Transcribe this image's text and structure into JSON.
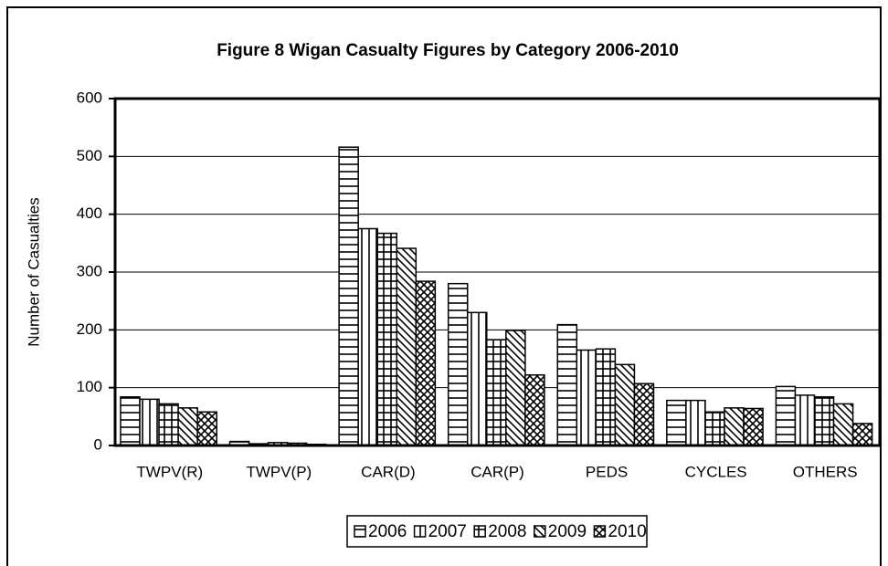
{
  "chart_data": {
    "type": "bar",
    "title": "Figure 8 Wigan Casualty Figures by Category 2006-2010",
    "y_label": "Number of Casualties",
    "categories": [
      "TWPV(R)",
      "TWPV(P)",
      "CAR(D)",
      "CAR(P)",
      "PEDS",
      "CYCLES",
      "OTHERS"
    ],
    "series": [
      {
        "name": "2006",
        "color": "#000000",
        "pattern": "horizontal",
        "values": [
          84,
          7,
          516,
          280,
          209,
          78,
          102
        ]
      },
      {
        "name": "2007",
        "color": "#000000",
        "pattern": "vertical",
        "values": [
          80,
          3,
          375,
          230,
          165,
          78,
          87
        ]
      },
      {
        "name": "2008",
        "color": "#000000",
        "pattern": "grid",
        "values": [
          72,
          5,
          367,
          183,
          167,
          58,
          84
        ]
      },
      {
        "name": "2009",
        "color": "#000000",
        "pattern": "diagonal",
        "values": [
          65,
          4,
          341,
          199,
          140,
          65,
          72
        ]
      },
      {
        "name": "2010",
        "color": "#000000",
        "pattern": "crosshatch",
        "values": [
          58,
          2,
          284,
          122,
          107,
          64,
          38
        ]
      }
    ],
    "ylim": [
      0,
      600
    ],
    "yticks": [
      0,
      100,
      200,
      300,
      400,
      500,
      600
    ],
    "grid": true,
    "legend": "bottom"
  }
}
